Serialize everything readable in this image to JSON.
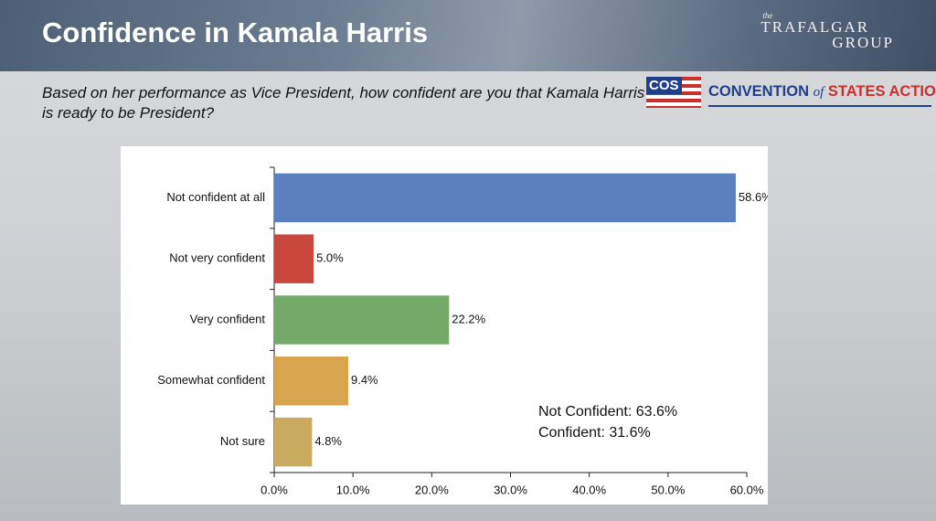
{
  "chart_data": {
    "type": "bar",
    "orientation": "horizontal",
    "title": "Confidence in Kamala Harris",
    "subtitle": "Based on her performance as Vice President, how confident are you that Kamala Harris is ready to be President?",
    "categories": [
      "Not confident at all",
      "Not very confident",
      "Very confident",
      "Somewhat confident",
      "Not sure"
    ],
    "values": [
      58.6,
      5.0,
      22.2,
      9.4,
      4.8
    ],
    "value_labels": [
      "58.6%",
      "5.0%",
      "22.2%",
      "9.4%",
      "4.8%"
    ],
    "colors": [
      "#5b7fbf",
      "#c9473d",
      "#75a96a",
      "#d9a44e",
      "#c8ab5e"
    ],
    "xlim": [
      0,
      60
    ],
    "xticks": [
      {
        "value": 0,
        "label": "0.0%"
      },
      {
        "value": 10,
        "label": "10.0%"
      },
      {
        "value": 20,
        "label": "20.0%"
      },
      {
        "value": 30,
        "label": "30.0%"
      },
      {
        "value": 40,
        "label": "40.0%"
      },
      {
        "value": 50,
        "label": "50.0%"
      },
      {
        "value": 60,
        "label": "60.0%"
      }
    ],
    "grid": false,
    "annotations": [
      "Not Confident: 63.6%",
      "Confident: 31.6%"
    ]
  },
  "logos": {
    "trafalgar": [
      "the",
      "TRAFALGAR",
      "GROUP"
    ],
    "cos": [
      "COS",
      "CONVENTION",
      "of",
      "STATES ACTION"
    ]
  }
}
